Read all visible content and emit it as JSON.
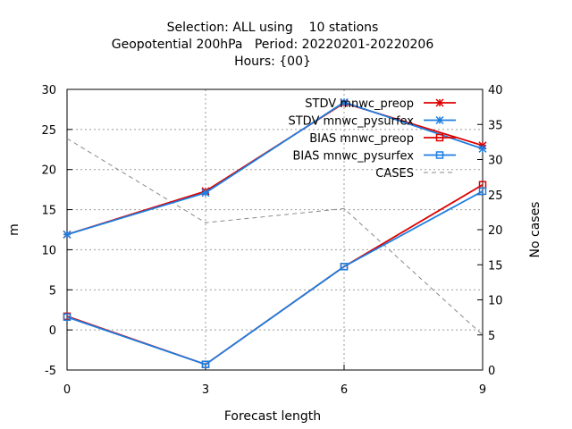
{
  "chart_data": {
    "type": "line",
    "title_lines": [
      "Selection: ALL using    10 stations",
      "Geopotential 200hPa   Period: 20220201-20220206",
      "Hours: {00}"
    ],
    "xlabel": "Forecast length",
    "ylabel": "m",
    "y2label": "No cases",
    "x": [
      0,
      3,
      6,
      9
    ],
    "xlim": [
      0,
      9
    ],
    "ylim": [
      -5,
      30
    ],
    "y2lim": [
      0,
      40
    ],
    "xticks": [
      "0",
      "3",
      "6",
      "9"
    ],
    "yticks": [
      "-5",
      "0",
      "5",
      "10",
      "15",
      "20",
      "25",
      "30"
    ],
    "y2ticks": [
      "0",
      "5",
      "10",
      "15",
      "20",
      "25",
      "30",
      "35",
      "40"
    ],
    "grid": true,
    "legend_position": "top-right",
    "series": [
      {
        "name": "STDV mnwc_preop",
        "axis": "y",
        "marker": "cross",
        "color": "#dd0000",
        "values": [
          11.9,
          17.3,
          28.3,
          23.0
        ]
      },
      {
        "name": "STDV mnwc_pysurfex",
        "axis": "y",
        "marker": "cross",
        "color": "#1e7fe0",
        "values": [
          11.9,
          17.1,
          28.4,
          22.6
        ]
      },
      {
        "name": "BIAS mnwc_preop",
        "axis": "y",
        "marker": "square",
        "color": "#dd0000",
        "values": [
          1.7,
          -4.3,
          7.9,
          18.1
        ]
      },
      {
        "name": "BIAS mnwc_pysurfex",
        "axis": "y",
        "marker": "square",
        "color": "#1e7fe0",
        "values": [
          1.6,
          -4.3,
          7.9,
          17.3
        ]
      },
      {
        "name": "CASES",
        "axis": "y2",
        "marker": "none",
        "dashed": true,
        "color": "#8a8a8a",
        "values": [
          33,
          21,
          23,
          5
        ]
      }
    ]
  }
}
